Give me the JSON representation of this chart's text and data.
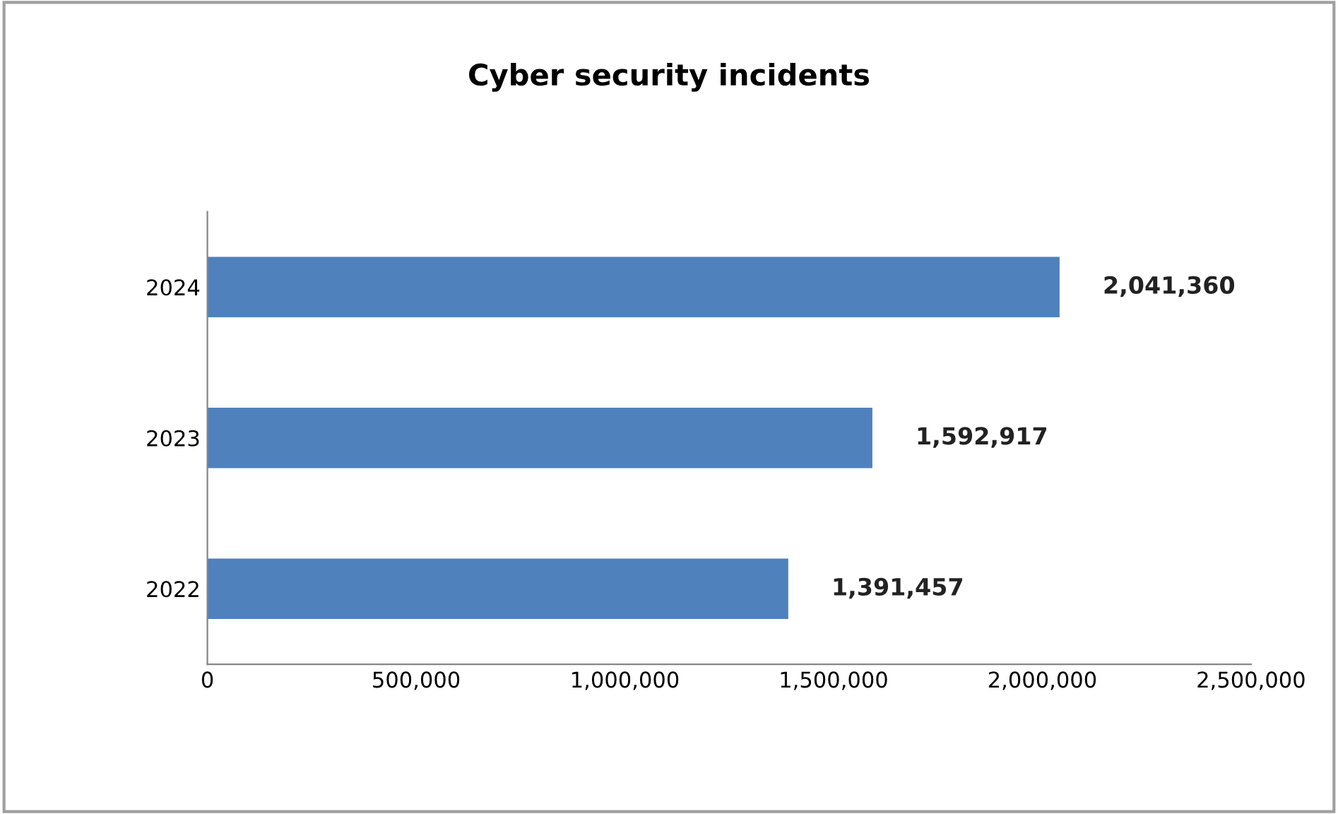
{
  "chart_data": {
    "type": "bar",
    "orientation": "horizontal",
    "title": "Cyber security incidents",
    "categories": [
      "2024",
      "2023",
      "2022"
    ],
    "values": [
      2041360,
      1592917,
      1391457
    ],
    "value_labels": [
      "2,041,360",
      "1,592,917",
      "1,391,457"
    ],
    "color": "#4f81bd",
    "xlim": [
      0,
      2500000
    ],
    "xticks": [
      0,
      {
        "value": 500000,
        "label": "500,000"
      },
      {
        "value": 1000000,
        "label": "1,000,000"
      },
      {
        "value": 1500000,
        "label": "1,500,000"
      },
      {
        "value": 2000000,
        "label": "2,000,000"
      },
      {
        "value": 2500000,
        "label": "2,500,000"
      }
    ],
    "grid": false,
    "legend": false
  }
}
